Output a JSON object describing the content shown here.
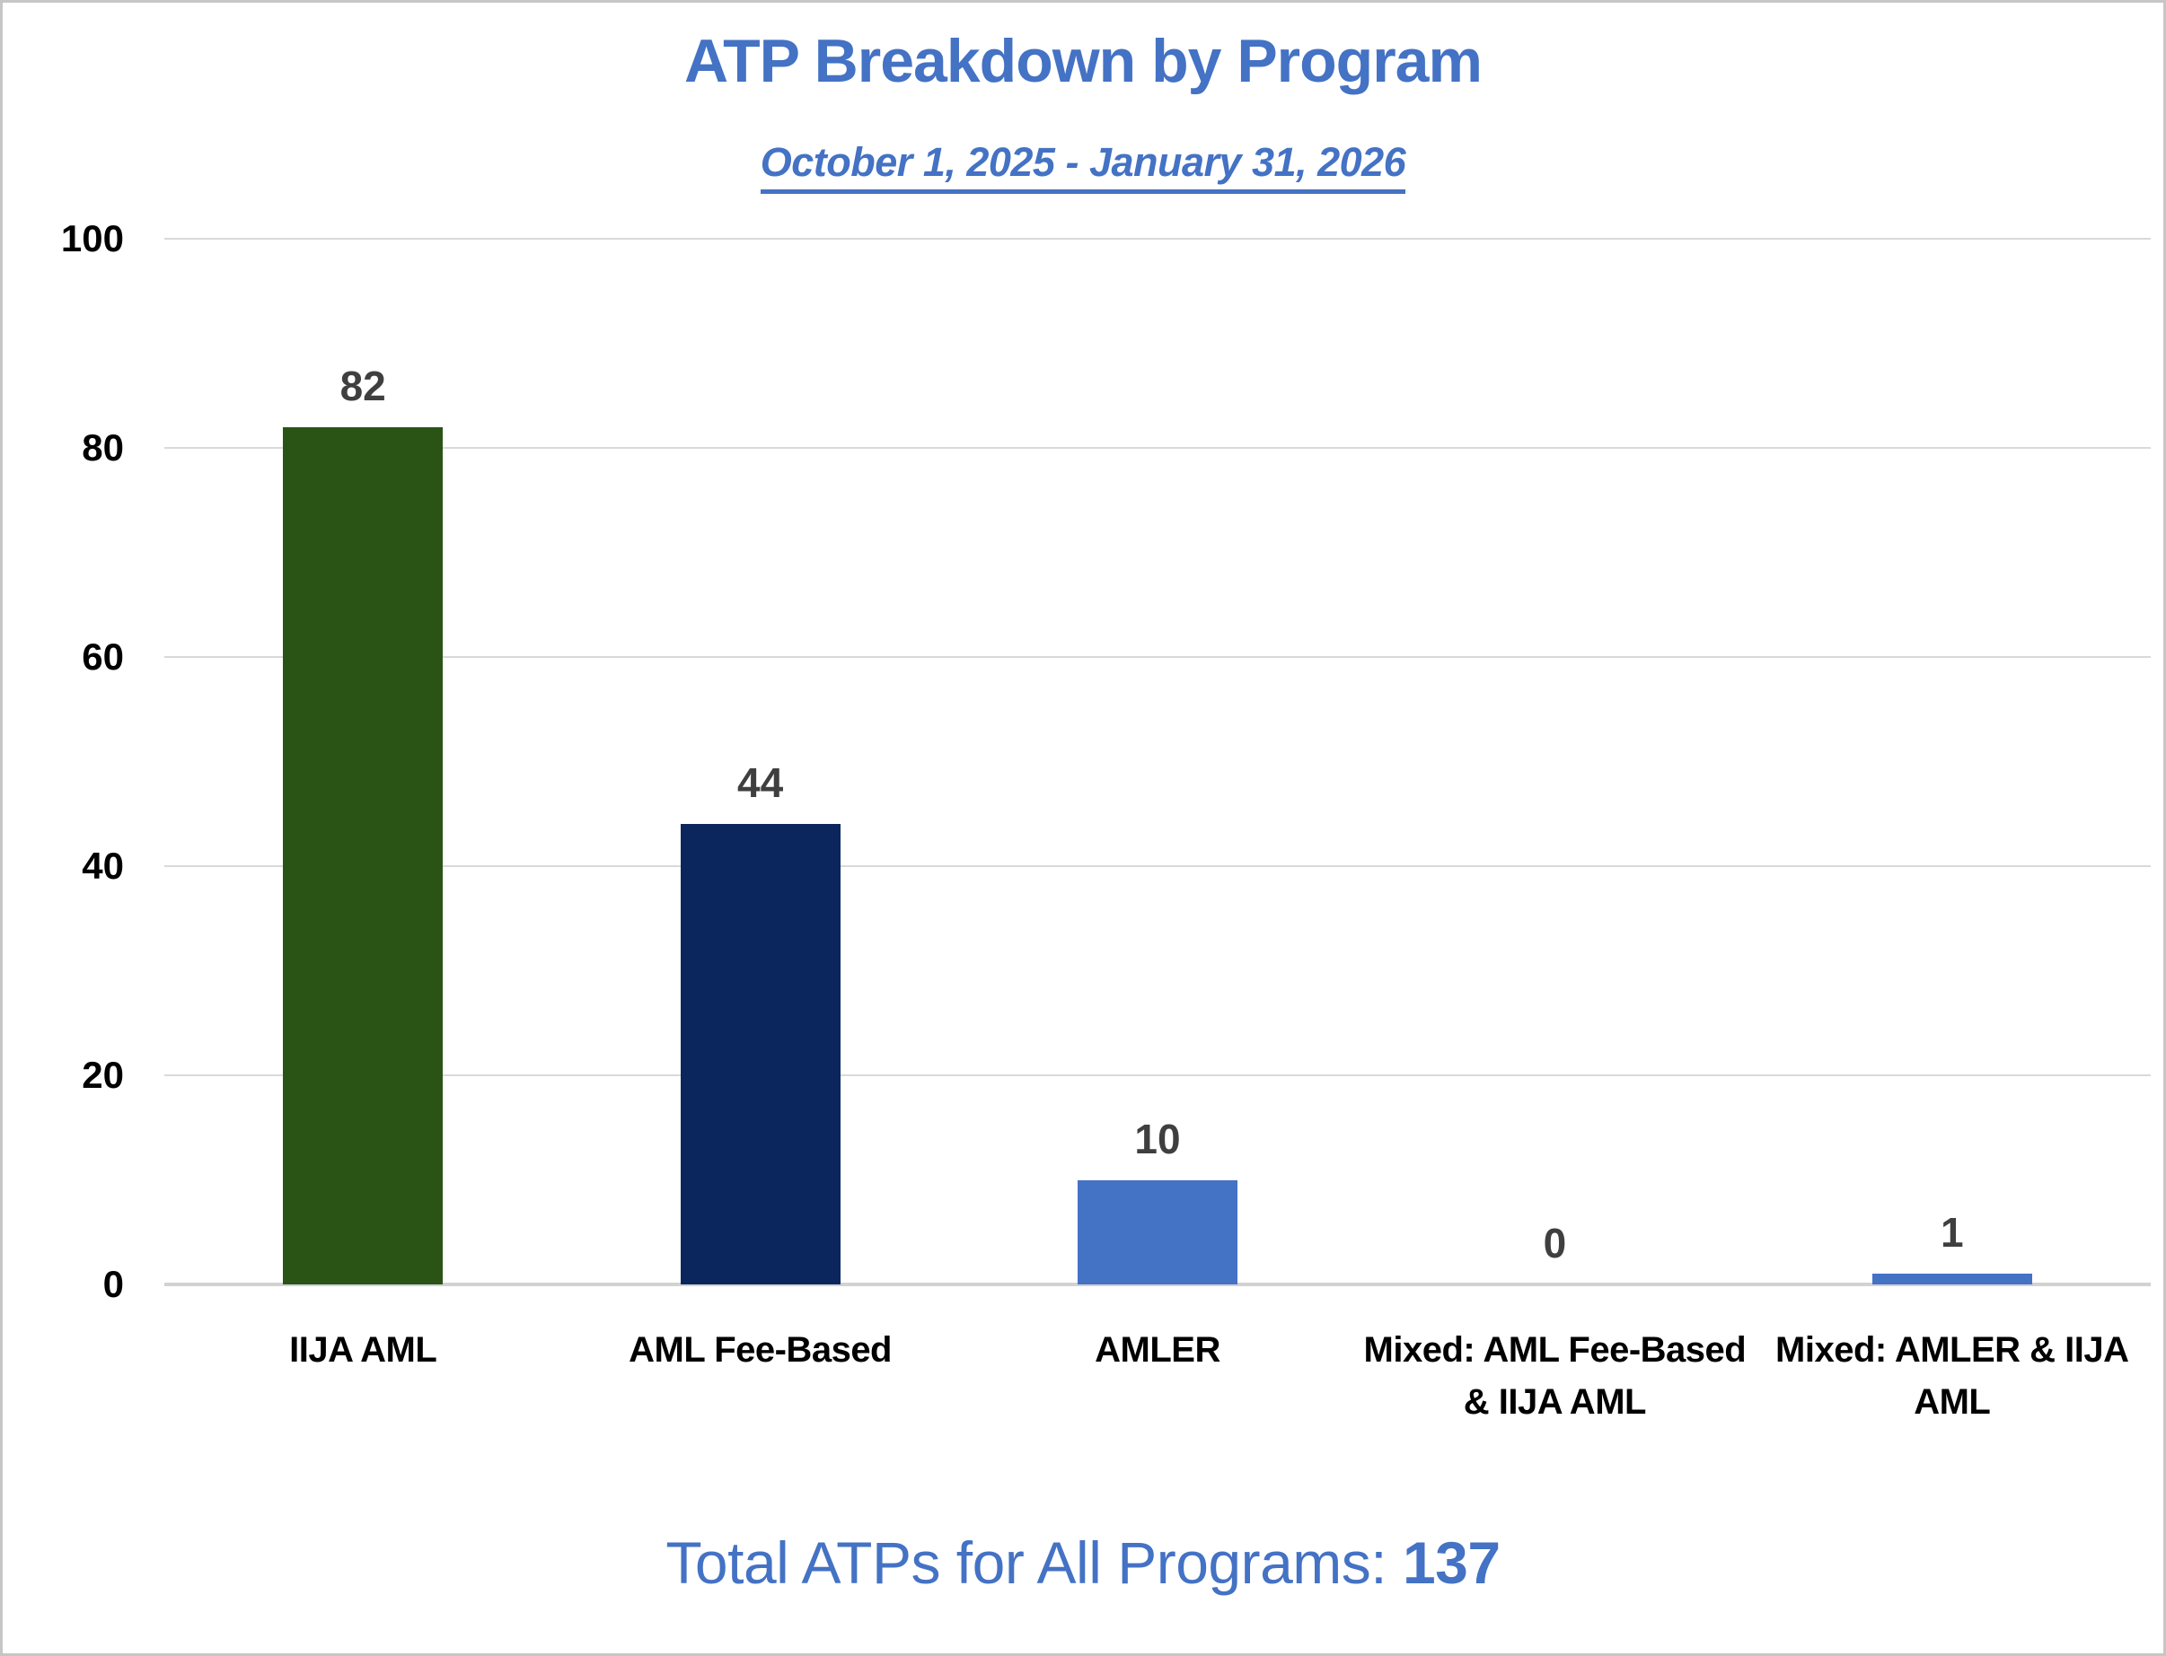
{
  "chart_data": {
    "type": "bar",
    "title": "ATP Breakdown by Program",
    "subtitle": "October 1, 2025 - January 31, 2026",
    "categories": [
      "IIJA AML",
      "AML Fee-Based",
      "AMLER",
      "Mixed: AML Fee-Based & IIJA AML",
      "Mixed: AMLER & IIJA AML"
    ],
    "values": [
      82,
      44,
      10,
      0,
      1
    ],
    "bar_colors": [
      "#2A5416",
      "#0B265C",
      "#4472C4",
      "#4472C4",
      "#4472C4"
    ],
    "y_ticks": [
      0,
      20,
      40,
      60,
      80,
      100
    ],
    "ylim": [
      0,
      100
    ],
    "xlabel": "",
    "ylabel": "",
    "grid": true,
    "legend": false,
    "value_labels_shown": true
  },
  "footer": {
    "total_label": "Total ATPs for All Programs: ",
    "total_value": "137"
  },
  "colors": {
    "accent_blue": "#4472C4",
    "value_label_gray": "#3F3F3F",
    "gridline_gray": "#D9D9D9",
    "axis_line_gray": "#D2D2D2",
    "category_black": "#000000",
    "background": "#FFFFFF"
  }
}
